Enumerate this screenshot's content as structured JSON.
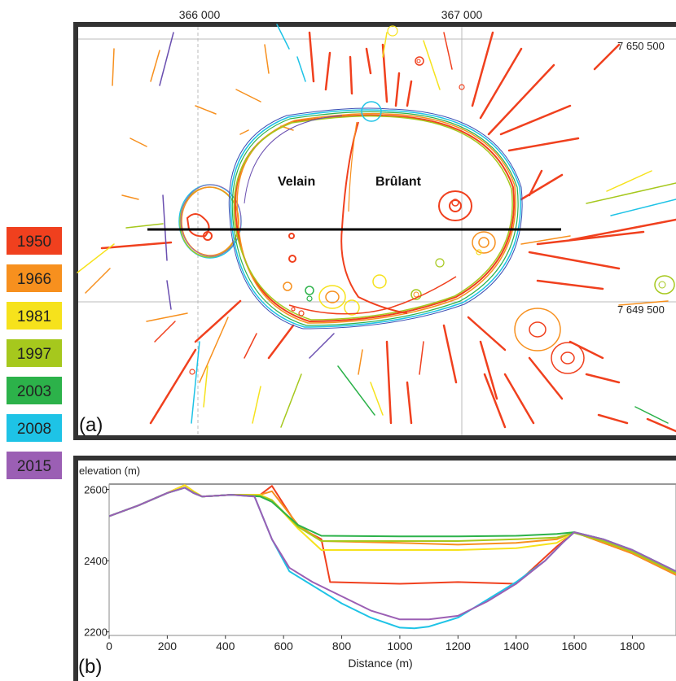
{
  "legend": [
    {
      "year": "1950",
      "color": "#f0401e"
    },
    {
      "year": "1966",
      "color": "#f7901e"
    },
    {
      "year": "1981",
      "color": "#f6e21c"
    },
    {
      "year": "1997",
      "color": "#a6c81d"
    },
    {
      "year": "2003",
      "color": "#2cb24a"
    },
    {
      "year": "2008",
      "color": "#1ec3e6"
    },
    {
      "year": "2015",
      "color": "#9b5fb4"
    }
  ],
  "panel_a": {
    "tag": "(a)",
    "easting_ticks": [
      "366 000",
      "367 000"
    ],
    "northing_ticks": [
      "7 650 500",
      "7 649 500"
    ],
    "crater_labels": {
      "velain": "Velain",
      "brulant": "Brûlant"
    }
  },
  "panel_b": {
    "tag": "(b)"
  },
  "chart_data": {
    "type": "line",
    "ylabel": "elevation (m)",
    "xlabel": "Distance (m)",
    "xlim": [
      0,
      1950
    ],
    "ylim": [
      2190,
      2615
    ],
    "xticks": [
      0,
      200,
      400,
      600,
      800,
      1000,
      1200,
      1400,
      1600,
      1800
    ],
    "yticks": [
      2200,
      2400,
      2600
    ],
    "grid": false,
    "series": [
      {
        "name": "1950",
        "color": "#f0401e",
        "x": [
          0,
          100,
          200,
          260,
          290,
          320,
          420,
          520,
          560,
          650,
          730,
          760,
          1000,
          1200,
          1400,
          1540,
          1600,
          1700,
          1800,
          1950
        ],
        "y": [
          2525,
          2555,
          2590,
          2612,
          2595,
          2580,
          2585,
          2585,
          2610,
          2495,
          2460,
          2340,
          2335,
          2340,
          2335,
          2440,
          2480,
          2450,
          2420,
          2360
        ]
      },
      {
        "name": "1966",
        "color": "#f7901e",
        "x": [
          0,
          100,
          200,
          260,
          290,
          320,
          420,
          520,
          560,
          650,
          730,
          1000,
          1200,
          1400,
          1540,
          1600,
          1700,
          1800,
          1950
        ],
        "y": [
          2525,
          2555,
          2590,
          2612,
          2595,
          2580,
          2585,
          2585,
          2595,
          2500,
          2455,
          2450,
          2445,
          2450,
          2460,
          2480,
          2450,
          2420,
          2360
        ]
      },
      {
        "name": "1981",
        "color": "#f6e21c",
        "x": [
          0,
          100,
          200,
          260,
          290,
          320,
          420,
          520,
          560,
          650,
          730,
          1000,
          1200,
          1400,
          1540,
          1600,
          1700,
          1800,
          1950
        ],
        "y": [
          2525,
          2555,
          2590,
          2612,
          2595,
          2580,
          2585,
          2585,
          2570,
          2490,
          2430,
          2430,
          2430,
          2435,
          2450,
          2480,
          2455,
          2425,
          2365
        ]
      },
      {
        "name": "1997",
        "color": "#a6c81d",
        "x": [
          0,
          100,
          200,
          260,
          290,
          320,
          420,
          520,
          560,
          650,
          730,
          1000,
          1200,
          1400,
          1540,
          1600,
          1700,
          1800,
          1950
        ],
        "y": [
          2525,
          2555,
          2590,
          2605,
          2592,
          2580,
          2585,
          2582,
          2570,
          2495,
          2455,
          2455,
          2455,
          2460,
          2465,
          2478,
          2455,
          2425,
          2365
        ]
      },
      {
        "name": "2003",
        "color": "#2cb24a",
        "x": [
          0,
          100,
          200,
          260,
          290,
          320,
          420,
          520,
          560,
          650,
          730,
          1000,
          1200,
          1400,
          1540,
          1600,
          1700,
          1800,
          1950
        ],
        "y": [
          2525,
          2555,
          2590,
          2605,
          2590,
          2580,
          2585,
          2580,
          2565,
          2500,
          2470,
          2468,
          2468,
          2470,
          2475,
          2480,
          2460,
          2430,
          2370
        ]
      },
      {
        "name": "2008",
        "color": "#1ec3e6",
        "x": [
          0,
          100,
          200,
          260,
          290,
          320,
          420,
          500,
          560,
          620,
          700,
          800,
          900,
          1000,
          1050,
          1100,
          1200,
          1300,
          1400,
          1500,
          1560,
          1600,
          1700,
          1800,
          1950
        ],
        "y": [
          2525,
          2555,
          2590,
          2605,
          2590,
          2580,
          2585,
          2580,
          2460,
          2370,
          2330,
          2280,
          2240,
          2212,
          2210,
          2215,
          2240,
          2290,
          2340,
          2400,
          2450,
          2480,
          2460,
          2430,
          2370
        ]
      },
      {
        "name": "2015",
        "color": "#9b5fb4",
        "x": [
          0,
          100,
          200,
          260,
          290,
          320,
          420,
          500,
          560,
          620,
          700,
          800,
          900,
          1000,
          1100,
          1200,
          1300,
          1400,
          1500,
          1560,
          1600,
          1700,
          1800,
          1950
        ],
        "y": [
          2525,
          2555,
          2590,
          2605,
          2590,
          2580,
          2585,
          2580,
          2460,
          2380,
          2340,
          2300,
          2260,
          2235,
          2235,
          2245,
          2285,
          2335,
          2400,
          2450,
          2480,
          2460,
          2430,
          2370
        ]
      }
    ]
  }
}
